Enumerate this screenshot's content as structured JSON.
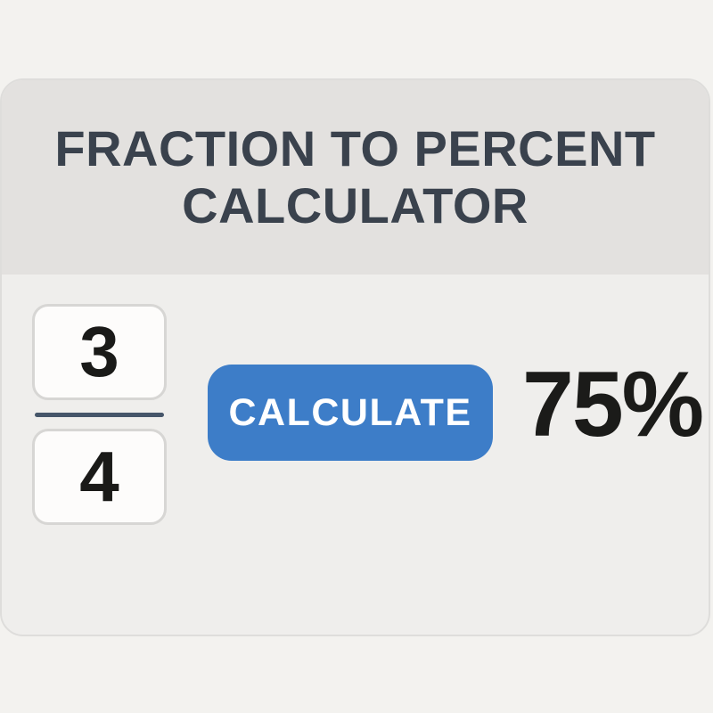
{
  "page": {
    "background_color": "#f3f2ef"
  },
  "card": {
    "background_color": "#efeeec",
    "border_color": "#dedddb"
  },
  "header": {
    "background_color": "#e3e1df",
    "title_line1": "FRACTION TO PERCENT",
    "title_line2": "CALCULATOR",
    "title_color": "#3a424d"
  },
  "fraction": {
    "numerator_value": "3",
    "denominator_value": "4",
    "box_background": "#fdfcfb",
    "box_border_color": "#d7d6d4",
    "digit_color": "#1a1a18",
    "divider_color": "#46566a"
  },
  "button": {
    "label": "CALCULATE",
    "background_color": "#3d7dc8",
    "text_color": "#ffffff"
  },
  "result": {
    "value": "75%",
    "color": "#1b1b19"
  }
}
